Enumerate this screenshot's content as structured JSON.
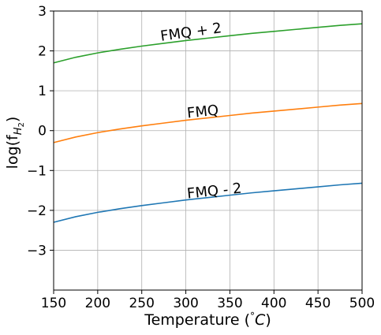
{
  "chart_data": {
    "type": "line",
    "title": "",
    "xlabel": "Temperature (°C)",
    "ylabel": "log(fH2)",
    "xlim": [
      150,
      500
    ],
    "ylim": [
      -4,
      3
    ],
    "grid": true,
    "x_ticks": [
      150,
      200,
      250,
      300,
      350,
      400,
      450,
      500
    ],
    "y_ticks": [
      -3,
      -2,
      -1,
      0,
      1,
      2,
      3
    ],
    "x_tick_labels": [
      "150",
      "200",
      "250",
      "300",
      "350",
      "400",
      "450",
      "500"
    ],
    "y_tick_labels": [
      "−3",
      "−2",
      "−1",
      "0",
      "1",
      "2",
      "3"
    ],
    "x": [
      150,
      175,
      200,
      225,
      250,
      275,
      300,
      325,
      350,
      375,
      400,
      425,
      450,
      475,
      500
    ],
    "series": [
      {
        "color": "#2ca02c",
        "values": [
          1.7,
          1.84,
          1.95,
          2.04,
          2.12,
          2.19,
          2.26,
          2.32,
          2.38,
          2.44,
          2.49,
          2.54,
          2.59,
          2.64,
          2.68
        ]
      },
      {
        "color": "#ff7f0e",
        "values": [
          -0.3,
          -0.16,
          -0.05,
          0.04,
          0.12,
          0.19,
          0.26,
          0.32,
          0.38,
          0.44,
          0.49,
          0.54,
          0.59,
          0.64,
          0.68
        ]
      },
      {
        "color": "#1f77b4",
        "values": [
          -2.3,
          -2.16,
          -2.05,
          -1.96,
          -1.88,
          -1.81,
          -1.74,
          -1.68,
          -1.62,
          -1.56,
          -1.51,
          -1.46,
          -1.41,
          -1.36,
          -1.32
        ]
      }
    ],
    "annotations": [
      {
        "text": "FMQ + 2",
        "x": 272,
        "y": 2.25,
        "rotation_deg": -8
      },
      {
        "text": "FMQ",
        "x": 302,
        "y": 0.32,
        "rotation_deg": -6
      },
      {
        "text": "FMQ - 2",
        "x": 302,
        "y": -1.7,
        "rotation_deg": -6
      }
    ]
  }
}
